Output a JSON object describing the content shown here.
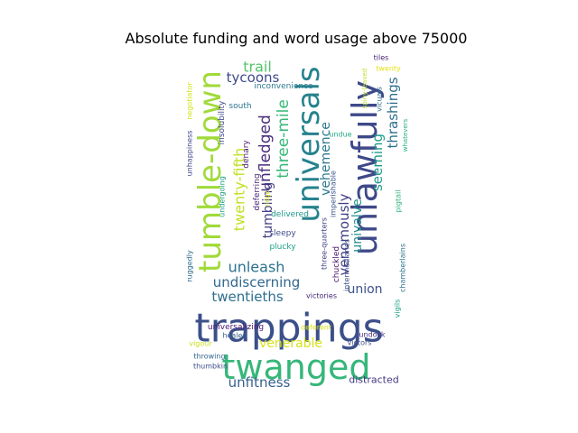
{
  "chart_data": {
    "type": "wordcloud",
    "title": "Absolute funding and word usage above 75000",
    "words": [
      {
        "text": "trappings",
        "color": "#3b4f8a"
      },
      {
        "text": "twanged",
        "color": "#35b779"
      },
      {
        "text": "tumble-down",
        "color": "#a0da39"
      },
      {
        "text": "unlawfully",
        "color": "#3e4989"
      },
      {
        "text": "universals",
        "color": "#26828e"
      },
      {
        "text": "unfitness",
        "color": "#355f8d"
      },
      {
        "text": "trail",
        "color": "#52c569"
      },
      {
        "text": "tycoons",
        "color": "#3e4a89"
      },
      {
        "text": "twenty-fifth",
        "color": "#c2df23"
      },
      {
        "text": "unfledged",
        "color": "#472c7a"
      },
      {
        "text": "three-mile",
        "color": "#37b878"
      },
      {
        "text": "tumbling",
        "color": "#433e85"
      },
      {
        "text": "unleash",
        "color": "#2c728e"
      },
      {
        "text": "undiscerning",
        "color": "#31688e"
      },
      {
        "text": "twentieths",
        "color": "#2e6e8e"
      },
      {
        "text": "union",
        "color": "#3b528b"
      },
      {
        "text": "venerable",
        "color": "#d8e219"
      },
      {
        "text": "vehemence",
        "color": "#2a788e"
      },
      {
        "text": "venomously",
        "color": "#424086"
      },
      {
        "text": "univalve",
        "color": "#21918c"
      },
      {
        "text": "seeming",
        "color": "#1e9b8a"
      },
      {
        "text": "thrashings",
        "color": "#2e6f8e"
      },
      {
        "text": "distracted",
        "color": "#443983"
      },
      {
        "text": "inconvenience",
        "color": "#2a788e"
      },
      {
        "text": "insolubility",
        "color": "#3f4788"
      },
      {
        "text": "south",
        "color": "#2a778e"
      },
      {
        "text": "denary",
        "color": "#481f70"
      },
      {
        "text": "deferring",
        "color": "#482576"
      },
      {
        "text": "delivered",
        "color": "#1f988b"
      },
      {
        "text": "sleepy",
        "color": "#3e4c8a"
      },
      {
        "text": "plucky",
        "color": "#1fa088"
      },
      {
        "text": "undue",
        "color": "#22a785"
      },
      {
        "text": "imperishable",
        "color": "#3a548c"
      },
      {
        "text": "three-quarters",
        "color": "#414287"
      },
      {
        "text": "chuckled",
        "color": "#471365"
      },
      {
        "text": "intermediaries",
        "color": "#3c508b"
      },
      {
        "text": "vicuals",
        "color": "#2d708e"
      },
      {
        "text": "spiny-leaved",
        "color": "#bddf26"
      },
      {
        "text": "tiles",
        "color": "#482475"
      },
      {
        "text": "twenty",
        "color": "#e5e419"
      },
      {
        "text": "whatevers",
        "color": "#25ab82"
      },
      {
        "text": "pigtail",
        "color": "#2db27d"
      },
      {
        "text": "chamberlains",
        "color": "#2c738e"
      },
      {
        "text": "vigils",
        "color": "#20a386"
      },
      {
        "text": "unhappiness",
        "color": "#404688"
      },
      {
        "text": "negotiator",
        "color": "#d2e21b"
      },
      {
        "text": "undergoing",
        "color": "#1f9e89"
      },
      {
        "text": "ruggedly",
        "color": "#2f6c8e"
      },
      {
        "text": "ridge",
        "color": "#d5e21a"
      },
      {
        "text": "victories",
        "color": "#482878"
      },
      {
        "text": "universalizing",
        "color": "#481a6c"
      },
      {
        "text": "deferent",
        "color": "#d8e219"
      },
      {
        "text": "healed",
        "color": "#33638d"
      },
      {
        "text": "undock",
        "color": "#46327e"
      },
      {
        "text": "victors",
        "color": "#3c4f8a"
      },
      {
        "text": "vigour",
        "color": "#c8e020"
      },
      {
        "text": "throwing",
        "color": "#31678e"
      },
      {
        "text": "thumbkin",
        "color": "#3d4d8a"
      }
    ]
  }
}
